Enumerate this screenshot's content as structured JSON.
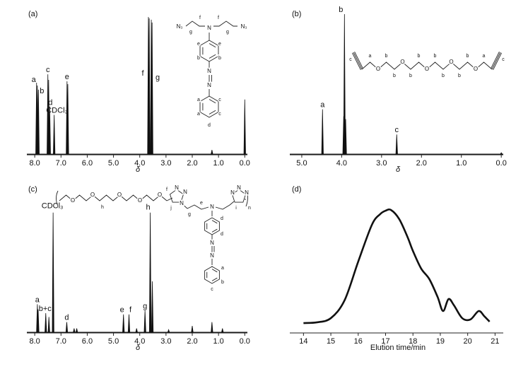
{
  "chart_data": [
    {
      "type": "spectrum",
      "panel_label": "(a)",
      "xlabel": "δ",
      "xlim": [
        8.3,
        -0.1
      ],
      "ylim": [
        0,
        100
      ],
      "xticks": [
        {
          "value": 8,
          "label": "8.0"
        },
        {
          "value": 7,
          "label": "7.0"
        },
        {
          "value": 6,
          "label": "6.0"
        },
        {
          "value": 5,
          "label": "5.0"
        },
        {
          "value": 4,
          "label": "4.0"
        },
        {
          "value": 3,
          "label": "3.0"
        },
        {
          "value": 2,
          "label": "2.0"
        },
        {
          "value": 1,
          "label": "1.0"
        },
        {
          "value": 0,
          "label": "0.0"
        }
      ],
      "x": [
        7.93,
        7.9,
        7.86,
        7.5,
        7.47,
        7.43,
        7.26,
        6.77,
        6.74,
        3.67,
        3.64,
        3.56,
        3.53,
        1.25,
        0.0
      ],
      "values": [
        51,
        49,
        46,
        57,
        53,
        34,
        28,
        52,
        50,
        98,
        97,
        96,
        94,
        3,
        39
      ],
      "peak_labels": [
        "a",
        null,
        "b",
        "c",
        null,
        "d",
        "CDCl₃",
        "e",
        null,
        "f",
        null,
        "g",
        null,
        null,
        null
      ],
      "structure_labels": [
        "N₃",
        "g",
        "f",
        "N",
        "f",
        "g",
        "N₃",
        "e",
        "e",
        "b",
        "b",
        "N",
        "N",
        "a",
        "a",
        "c",
        "c",
        "d"
      ]
    },
    {
      "type": "spectrum",
      "panel_label": "(b)",
      "xlabel": "δ",
      "xlim": [
        5.3,
        -0.05
      ],
      "ylim": [
        0,
        100
      ],
      "xticks": [
        {
          "value": 5,
          "label": "5.0"
        },
        {
          "value": 4,
          "label": "4.0"
        },
        {
          "value": 3,
          "label": "3.0"
        },
        {
          "value": 2,
          "label": "2.0"
        },
        {
          "value": 1,
          "label": "1.0"
        },
        {
          "value": 0,
          "label": "0.0"
        }
      ],
      "x": [
        4.48,
        3.95,
        3.93,
        3.9,
        2.62,
        0.0
      ],
      "values": [
        32,
        27,
        100,
        25,
        14,
        1
      ],
      "peak_labels": [
        "a",
        null,
        "b",
        null,
        "c",
        null
      ],
      "structure_labels": [
        "c",
        "a",
        "O",
        "b",
        "b",
        "O",
        "b",
        "b",
        "O",
        "b",
        "b",
        "O",
        "b",
        "b",
        "O",
        "a",
        "c"
      ]
    },
    {
      "type": "spectrum",
      "panel_label": "(c)",
      "xlabel": "δ",
      "xlim": [
        8.3,
        -0.1
      ],
      "ylim": [
        0,
        100
      ],
      "xticks": [
        {
          "value": 8,
          "label": "8.0"
        },
        {
          "value": 7,
          "label": "7.0"
        },
        {
          "value": 6,
          "label": "6.0"
        },
        {
          "value": 5,
          "label": "5.0"
        },
        {
          "value": 4,
          "label": "4.0"
        },
        {
          "value": 3,
          "label": "3.0"
        },
        {
          "value": 2,
          "label": "2.0"
        },
        {
          "value": 1,
          "label": "1.0"
        },
        {
          "value": 0,
          "label": "0.0"
        }
      ],
      "x": [
        7.9,
        7.87,
        7.58,
        7.46,
        7.3,
        6.78,
        6.5,
        6.4,
        4.62,
        4.41,
        4.12,
        3.8,
        3.6,
        3.52,
        2.9,
        2.0,
        1.25,
        0.85
      ],
      "values": [
        22,
        18,
        15,
        12,
        94,
        8,
        3,
        3,
        14,
        14,
        3,
        17,
        94,
        40,
        2,
        5,
        8,
        3
      ],
      "peak_labels": [
        "a",
        null,
        "b+c",
        null,
        "CDCl₃",
        "d",
        null,
        null,
        "e",
        "f",
        null,
        "g",
        "h",
        null,
        null,
        null,
        null,
        null
      ],
      "structure_labels": [
        "O",
        "O",
        "h",
        "O",
        "O",
        "O",
        "f",
        "N",
        "N",
        "N",
        "j",
        "g",
        "N",
        "e",
        "N",
        "N",
        "N",
        "i",
        "n",
        "d",
        "d",
        "N",
        "N",
        "a",
        "b",
        "c"
      ]
    },
    {
      "type": "line",
      "panel_label": "(d)",
      "xlabel": "Elution time/min",
      "xlim": [
        13.5,
        21.3
      ],
      "ylim": [
        0,
        100
      ],
      "xticks": [
        14,
        15,
        16,
        17,
        18,
        19,
        20,
        21
      ],
      "x": [
        14,
        14.5,
        15,
        15.5,
        16,
        16.5,
        16.8,
        17,
        17.2,
        17.5,
        17.8,
        18,
        18.3,
        18.6,
        18.9,
        19.1,
        19.3,
        19.5,
        19.8,
        20.1,
        20.4,
        20.6,
        20.8
      ],
      "values": [
        6.8,
        7.4,
        10.5,
        23.7,
        52.6,
        80,
        87.9,
        90.5,
        91,
        84.2,
        71,
        60.5,
        47.4,
        39.5,
        26.3,
        15.8,
        24.7,
        20,
        10.5,
        9.5,
        15.8,
        12.1,
        7.9
      ]
    }
  ]
}
